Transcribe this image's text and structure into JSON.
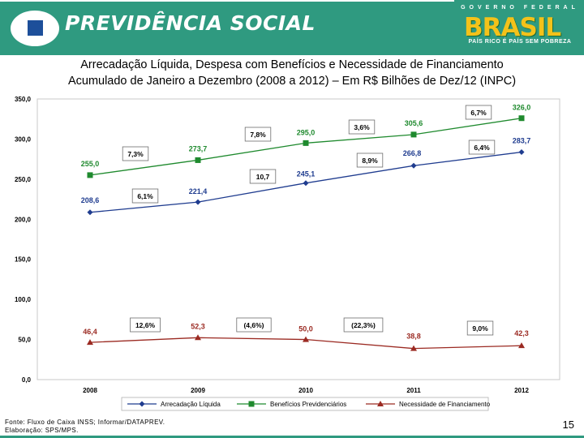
{
  "header": {
    "brand": "PREVIDÊNCIA SOCIAL",
    "gov_top": "GOVERNO FEDERAL",
    "gov_word": "BRASIL",
    "gov_slogan": "PAÍS RICO É PAÍS SEM POBREZA",
    "colors": {
      "bar": "#2f9a80",
      "gold": "#f3c21a",
      "blue": "#1d4f9a"
    }
  },
  "title_line1": "Arrecadação Líquida, Despesa com Benefícios e Necessidade de Financiamento",
  "title_line2": "Acumulado de Janeiro a Dezembro (2008 a 2012) – Em R$ Bilhões de Dez/12 (INPC)",
  "footer": {
    "source": "Fonte: Fluxo de Caixa INSS; Informar/DATAPREV.",
    "prepared": "Elaboração: SPS/MPS."
  },
  "page_number": "15",
  "chart_data": {
    "type": "line",
    "categories": [
      "2008",
      "2009",
      "2010",
      "2011",
      "2012"
    ],
    "ylim": [
      0,
      350
    ],
    "yticks": [
      "0,0",
      "50,0",
      "100,0",
      "150,0",
      "200,0",
      "250,0",
      "300,0",
      "350,0"
    ],
    "grid": false,
    "legend_position": "bottom",
    "series": [
      {
        "name": "Arrecadação Líquida",
        "color": "#1f3c8f",
        "marker": "diamond",
        "values": [
          208.6,
          221.4,
          245.1,
          266.8,
          283.7
        ],
        "labels": [
          "208,6",
          "221,4",
          "245,1",
          "266,8",
          "283,7"
        ],
        "growth": [
          "6,1%",
          "10,7",
          "8,9%",
          "6,4%"
        ]
      },
      {
        "name": "Benefícios Previdenciários",
        "color": "#1f8a2e",
        "marker": "square",
        "values": [
          255.0,
          273.7,
          295.0,
          305.6,
          326.0
        ],
        "labels": [
          "255,0",
          "273,7",
          "295,0",
          "305,6",
          "326,0"
        ],
        "growth": [
          "7,3%",
          "7,8%",
          "3,6%",
          "6,7%"
        ]
      },
      {
        "name": "Necessidade de Financiamento",
        "color": "#9b2a22",
        "marker": "triangle",
        "values": [
          46.4,
          52.3,
          50.0,
          38.8,
          42.3
        ],
        "labels": [
          "46,4",
          "52,3",
          "50,0",
          "38,8",
          "42,3"
        ],
        "growth": [
          "12,6%",
          "(4,6%)",
          "(22,3%)",
          "9,0%"
        ]
      }
    ]
  }
}
